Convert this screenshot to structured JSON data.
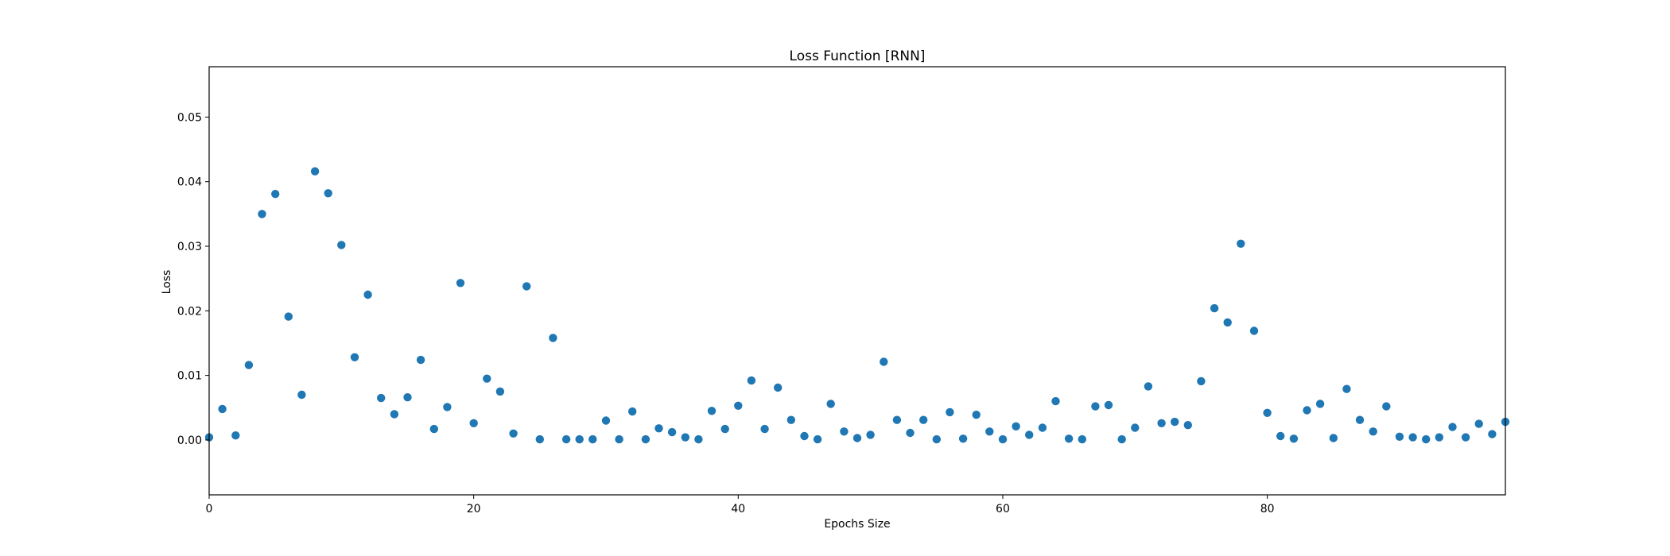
{
  "chart_data": {
    "type": "scatter",
    "title": "Loss Function [RNN]",
    "xlabel": "Epochs Size",
    "ylabel": "Loss",
    "xlim": [
      0,
      98
    ],
    "ylim": [
      -0.0085,
      0.0578
    ],
    "x_ticks": [
      0,
      20,
      40,
      60,
      80
    ],
    "x_tick_labels": [
      "0",
      "20",
      "40",
      "60",
      "80"
    ],
    "y_ticks": [
      0.0,
      0.01,
      0.02,
      0.03,
      0.04,
      0.05
    ],
    "y_tick_labels": [
      "0.00",
      "0.01",
      "0.02",
      "0.03",
      "0.04",
      "0.05"
    ],
    "grid": false,
    "marker_color": "#1f77b4",
    "series": [
      {
        "x": [
          0,
          1,
          2,
          3,
          4,
          5,
          6,
          7,
          8,
          9,
          10,
          11,
          12,
          13,
          14,
          15,
          16,
          17,
          18,
          19,
          20,
          21,
          22,
          23,
          24,
          25,
          26,
          27,
          28,
          29,
          30,
          31,
          32,
          33,
          34,
          35,
          36,
          37,
          38,
          39,
          40,
          41,
          42,
          43,
          44,
          45,
          46,
          47,
          48,
          49,
          50,
          51,
          52,
          53,
          54,
          55,
          56,
          57,
          58,
          59,
          60,
          61,
          62,
          63,
          64,
          65,
          66,
          67,
          68,
          69,
          70,
          71,
          72,
          73,
          74,
          75,
          76,
          77,
          78,
          79,
          80,
          81,
          82,
          83,
          84,
          85,
          86,
          87,
          88,
          89,
          90,
          91,
          92,
          93,
          94,
          95,
          96,
          97,
          98
        ],
        "y": [
          0.0004,
          0.0048,
          0.0007,
          0.0116,
          0.035,
          0.0381,
          0.0191,
          0.007,
          0.0416,
          0.0382,
          0.0302,
          0.0128,
          0.0225,
          0.0065,
          0.004,
          0.0066,
          0.0124,
          0.0017,
          0.0051,
          0.0243,
          0.0026,
          0.0095,
          0.0075,
          0.001,
          0.0238,
          0.0001,
          0.0158,
          0.0001,
          0.0001,
          0.0001,
          0.003,
          0.0001,
          0.0044,
          0.0001,
          0.0018,
          0.0012,
          0.0004,
          0.0001,
          0.0045,
          0.0017,
          0.0053,
          0.0092,
          0.0017,
          0.0081,
          0.0031,
          0.0006,
          0.0001,
          0.0056,
          0.0013,
          0.0003,
          0.0008,
          0.0121,
          0.0031,
          0.0011,
          0.0031,
          0.0001,
          0.0043,
          0.0002,
          0.0039,
          0.0013,
          0.0001,
          0.0021,
          0.0008,
          0.0019,
          0.006,
          0.0002,
          0.0001,
          0.0052,
          0.0054,
          0.0001,
          0.0019,
          0.0083,
          0.0026,
          0.0028,
          0.0023,
          0.0091,
          0.0204,
          0.0182,
          0.0304,
          0.0169,
          0.0042,
          0.0006,
          0.0002,
          0.0046,
          0.0056,
          0.0003,
          0.0079,
          0.0031,
          0.0013,
          0.0052,
          0.0005,
          0.0004,
          0.0001,
          0.0004,
          0.002,
          0.0004,
          0.0025,
          0.0009,
          0.0028
        ]
      }
    ]
  }
}
